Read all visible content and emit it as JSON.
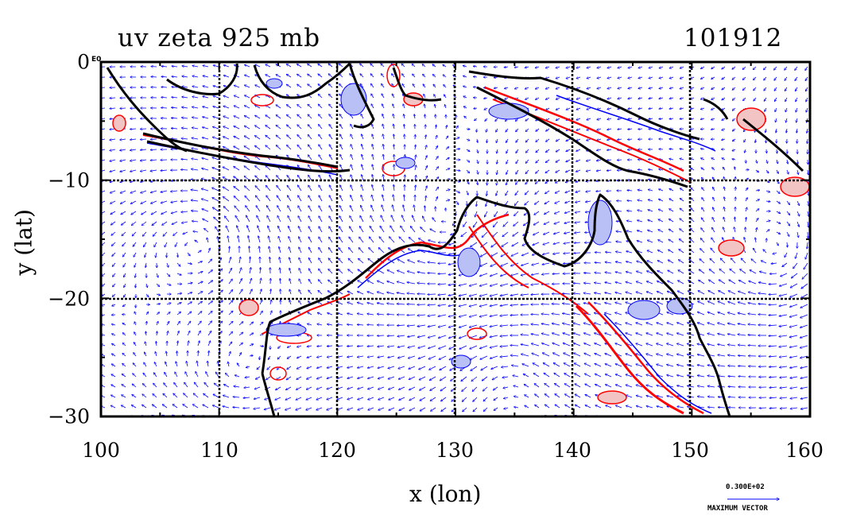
{
  "title_left": "uv zeta 925 mb",
  "title_right": "101912",
  "corner_label": "E0",
  "xlabel": "x (lon)",
  "ylabel": "y (lat)",
  "x_ticks": [
    "100",
    "110",
    "120",
    "130",
    "140",
    "150",
    "160"
  ],
  "y_ticks": [
    "0",
    "−10",
    "−20",
    "−30"
  ],
  "reference_vector": {
    "value": "0.300E+02",
    "label": "MAXIMUM VECTOR"
  },
  "colors": {
    "vectors": "#0000ff",
    "positive_vorticity": "#ff0000",
    "positive_fill": "#f2c4c4",
    "negative_vorticity": "#0000ff",
    "negative_fill": "#b8c0f5",
    "coastline": "#000000"
  },
  "chart_data": {
    "type": "map",
    "projection": "lon-lat",
    "xlim": [
      100,
      160
    ],
    "ylim": [
      -30,
      0
    ],
    "grid_lon": [
      110,
      120,
      130,
      140,
      150
    ],
    "grid_lat": [
      -10,
      -20
    ],
    "fields": [
      "wind vectors (u,v)",
      "relative vorticity zeta contours"
    ],
    "level": "925 mb",
    "time": "101912"
  }
}
